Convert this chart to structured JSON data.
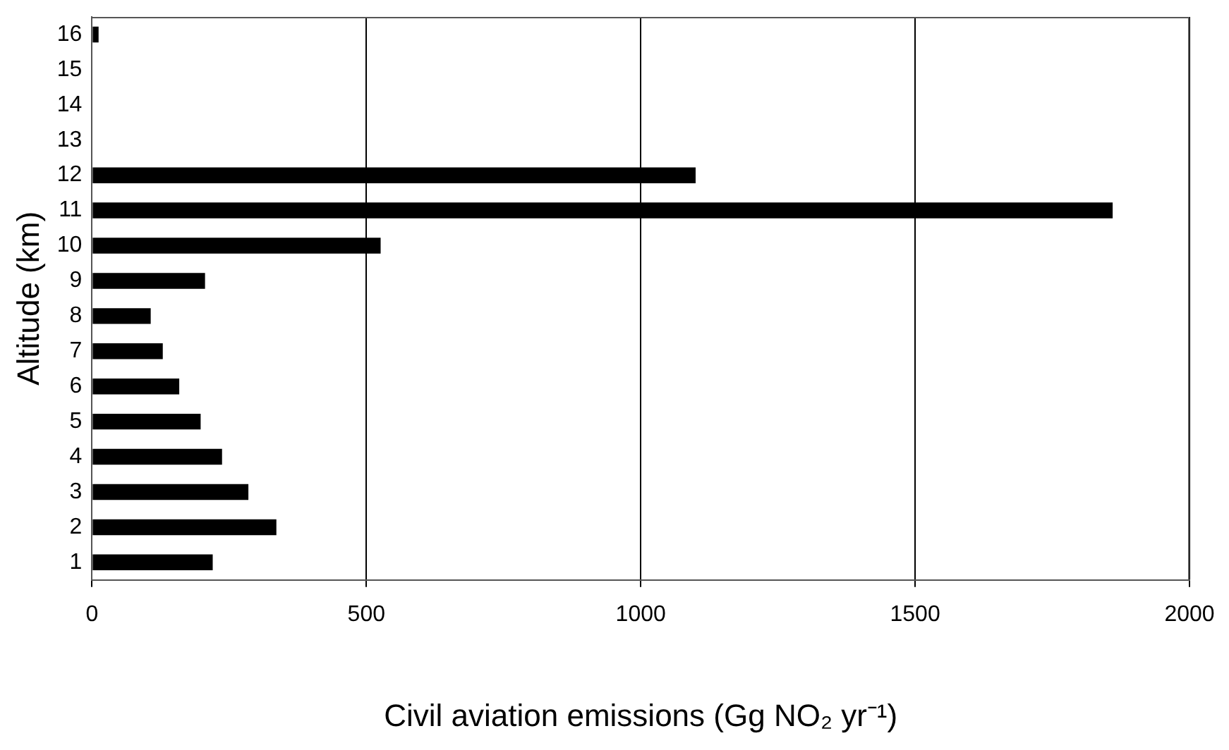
{
  "chart_data": {
    "type": "bar",
    "orientation": "horizontal",
    "xlabel": "Civil aviation emissions (Gg NO₂ yr⁻¹)",
    "ylabel": "Altitude (km)",
    "categories": [
      "16",
      "15",
      "14",
      "13",
      "12",
      "11",
      "10",
      "9",
      "8",
      "7",
      "6",
      "5",
      "4",
      "3",
      "2",
      "1"
    ],
    "values": [
      12,
      0,
      0,
      0,
      1100,
      1860,
      526,
      206,
      107,
      129,
      159,
      198,
      237,
      285,
      336,
      220
    ],
    "color": "#000000",
    "xlim": [
      0,
      2000
    ],
    "xticks": [
      0,
      500,
      1000,
      1500,
      2000
    ],
    "grid": "x",
    "legend": false
  }
}
